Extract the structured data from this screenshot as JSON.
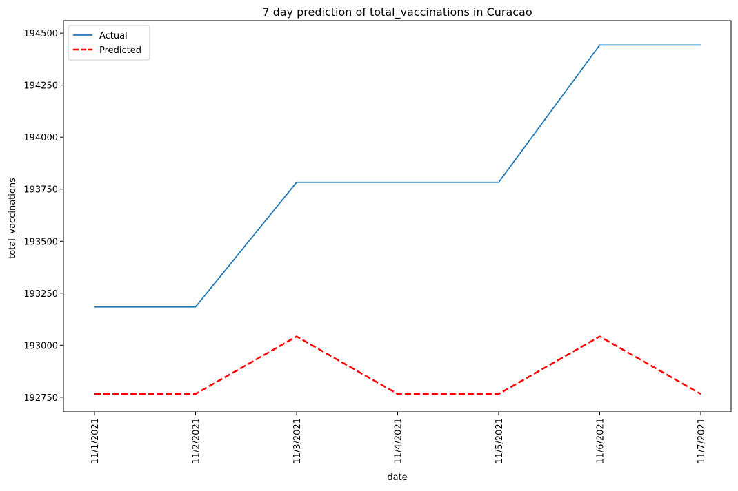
{
  "chart_data": {
    "type": "line",
    "title": "7 day prediction of total_vaccinations in Curacao",
    "xlabel": "date",
    "ylabel": "total_vaccinations",
    "categories": [
      "11/1/2021",
      "11/2/2021",
      "11/3/2021",
      "11/4/2021",
      "11/5/2021",
      "11/6/2021",
      "11/7/2021"
    ],
    "yticks": [
      192750,
      193000,
      193250,
      193500,
      193750,
      194000,
      194250,
      194500
    ],
    "ylim": [
      192680,
      194560
    ],
    "grid": false,
    "legend_position": "top-left",
    "series": [
      {
        "name": "Actual",
        "color": "#1f77b4",
        "style": "solid",
        "values": [
          193184,
          193184,
          193783,
          193783,
          193783,
          194443,
          194443
        ]
      },
      {
        "name": "Predicted",
        "color": "#ff0000",
        "style": "dashed",
        "values": [
          192766,
          192766,
          193042,
          192766,
          192766,
          193042,
          192766
        ]
      }
    ]
  }
}
